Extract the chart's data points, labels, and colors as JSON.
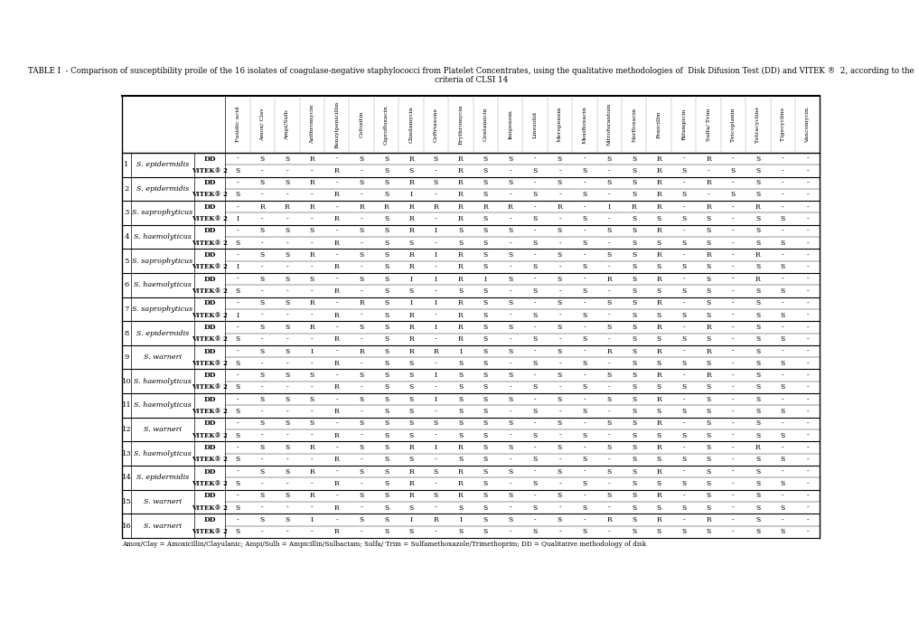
{
  "title": "TABLE I  - Comparison of susceptibility proile of the 16 isolates of coagulase-negative staphylococci from Platelet Concentrates, using the qualitative methodologies of  Disk Difusion Test (DD) and VITEK ®  2, according to the criteria of CLSI 14",
  "footnote": "Amox/Clay = Amoxicillin/Clayulanic; Ampi/Sulb = Ampicillin/Sulbactam; Sulfa/ Trim = Sulfamethoxazole/Trimethoprim; DD = Qualitative methodology of disk",
  "col_headers": [
    "Fusidic acid",
    "Amox/ Clav",
    "Ampi/Sulb",
    "Azithromycin",
    "Benzylpenicillin",
    "Cefoxitin",
    "Ciprofloxacin",
    "Clindamycin",
    "Ceftriaxone",
    "Erythromycin",
    "Gentamicin",
    "Imipenem",
    "Linezolid",
    "Meropenem",
    "Moxifloxacin",
    "Nitrofurantoin",
    "Norfloxacin",
    "Penicillin",
    "Rifampicin",
    "Sulfa/ Trim",
    "Teicoplanin",
    "Tetracycline",
    "Tigecycline",
    "Vancomycin."
  ],
  "rows": [
    {
      "num": "1",
      "organism": "S. epidermidis",
      "DD": [
        "-",
        "S",
        "S",
        "R",
        "-",
        "S",
        "S",
        "R",
        "S",
        "R",
        "S",
        "S",
        "-",
        "S",
        "-",
        "S",
        "S",
        "R",
        "-",
        "R",
        "-",
        "S",
        "-",
        "-"
      ],
      "VITEK2": [
        "S",
        "-",
        "-",
        "-",
        "R",
        "-",
        "S",
        "S",
        "-",
        "R",
        "S",
        "-",
        "S",
        "-",
        "S",
        "-",
        "S",
        "R",
        "S",
        "-",
        "S",
        "S",
        "-",
        "-"
      ]
    },
    {
      "num": "2",
      "organism": "S. epidermidis",
      "DD": [
        "-",
        "S",
        "S",
        "R",
        "-",
        "S",
        "S",
        "R",
        "S",
        "R",
        "S",
        "S",
        "-",
        "S",
        "-",
        "S",
        "S",
        "R",
        "-",
        "R",
        "-",
        "S",
        "-",
        "-"
      ],
      "VITEK2": [
        "S",
        "-",
        "-",
        "-",
        "R",
        "-",
        "S",
        "I",
        "-",
        "R",
        "S",
        "-",
        "S",
        "-",
        "S",
        "-",
        "S",
        "R",
        "S",
        "-",
        "S",
        "S",
        "-",
        "-"
      ]
    },
    {
      "num": "3",
      "organism": "S. saprophyticus",
      "DD": [
        "-",
        "R",
        "R",
        "R",
        "-",
        "R",
        "R",
        "R",
        "R",
        "R",
        "R",
        "R",
        "-",
        "R",
        "-",
        "I",
        "R",
        "R",
        "-",
        "R",
        "-",
        "R",
        "-",
        "-"
      ],
      "VITEK2": [
        "I",
        "-",
        "-",
        "-",
        "R",
        "-",
        "S",
        "R",
        "-",
        "R",
        "S",
        "-",
        "S",
        "-",
        "S",
        "-",
        "S",
        "S",
        "S",
        "S",
        "-",
        "S",
        "S",
        "-"
      ]
    },
    {
      "num": "4",
      "organism": "S. haemolyticus",
      "DD": [
        "-",
        "S",
        "S",
        "S",
        "-",
        "S",
        "S",
        "R",
        "I",
        "S",
        "S",
        "S",
        "-",
        "S",
        "-",
        "S",
        "S",
        "R",
        "-",
        "S",
        "-",
        "S",
        "-",
        "-"
      ],
      "VITEK2": [
        "S",
        "-",
        "-",
        "-",
        "R",
        "-",
        "S",
        "S",
        "-",
        "S",
        "S",
        "-",
        "S",
        "-",
        "S",
        "-",
        "S",
        "S",
        "S",
        "S",
        "-",
        "S",
        "S",
        "-"
      ]
    },
    {
      "num": "5",
      "organism": "S. saprophyticus",
      "DD": [
        "-",
        "S",
        "S",
        "R",
        "-",
        "S",
        "S",
        "R",
        "I",
        "R",
        "S",
        "S",
        "-",
        "S",
        "-",
        "S",
        "S",
        "R",
        "-",
        "R",
        "-",
        "R",
        "-",
        "-"
      ],
      "VITEK2": [
        "I",
        "-",
        "-",
        "-",
        "R",
        "-",
        "S",
        "R",
        "-",
        "R",
        "S",
        "-",
        "S",
        "-",
        "S",
        "-",
        "S",
        "S",
        "S",
        "S",
        "-",
        "S",
        "S",
        "-"
      ]
    },
    {
      "num": "6",
      "organism": "S. haemolyticus",
      "DD": [
        "-",
        "S",
        "S",
        "S",
        "-",
        "S",
        "S",
        "I",
        "I",
        "R",
        "I",
        "S",
        "-",
        "S",
        "-",
        "R",
        "S",
        "R",
        "-",
        "S",
        "-",
        "R",
        "-",
        "-"
      ],
      "VITEK2": [
        "S",
        "-",
        "-",
        "-",
        "R",
        "-",
        "S",
        "S",
        "-",
        "S",
        "S",
        "-",
        "S",
        "-",
        "S",
        "-",
        "S",
        "S",
        "S",
        "S",
        "-",
        "S",
        "S",
        "-"
      ]
    },
    {
      "num": "7",
      "organism": "S. saprophyticus",
      "DD": [
        "-",
        "S",
        "S",
        "R",
        "-",
        "R",
        "S",
        "I",
        "I",
        "R",
        "S",
        "S",
        "-",
        "S",
        "-",
        "S",
        "S",
        "R",
        "-",
        "S",
        "-",
        "S",
        "-",
        "-"
      ],
      "VITEK2": [
        "I",
        "-",
        "-",
        "-",
        "R",
        "-",
        "S",
        "R",
        "-",
        "R",
        "S",
        "-",
        "S",
        "-",
        "S",
        "-",
        "S",
        "S",
        "S",
        "S",
        "-",
        "S",
        "S",
        "-"
      ]
    },
    {
      "num": "8",
      "organism": "S. epidermidis",
      "DD": [
        "-",
        "S",
        "S",
        "R",
        "-",
        "S",
        "S",
        "R",
        "I",
        "R",
        "S",
        "S",
        "-",
        "S",
        "-",
        "S",
        "S",
        "R",
        "-",
        "R",
        "-",
        "S",
        "-",
        "-"
      ],
      "VITEK2": [
        "S",
        "-",
        "-",
        "-",
        "R",
        "-",
        "S",
        "R",
        "-",
        "R",
        "S",
        "-",
        "S",
        "-",
        "S",
        "-",
        "S",
        "S",
        "S",
        "S",
        "-",
        "S",
        "S",
        "-"
      ]
    },
    {
      "num": "9",
      "organism": "S. warneri",
      "DD": [
        "-",
        "S",
        "S",
        "I",
        "-",
        "R",
        "S",
        "R",
        "R",
        "I",
        "S",
        "S",
        "-",
        "S",
        "-",
        "R",
        "S",
        "R",
        "-",
        "R",
        "-",
        "S",
        "-",
        "-"
      ],
      "VITEK2": [
        "S",
        "-",
        "-",
        "-",
        "R",
        "-",
        "S",
        "S",
        "-",
        "S",
        "S",
        "-",
        "S",
        "-",
        "S",
        "-",
        "S",
        "S",
        "S",
        "S",
        "-",
        "S",
        "S",
        "-"
      ]
    },
    {
      "num": "10",
      "organism": "S. haemolyticus",
      "DD": [
        "-",
        "S",
        "S",
        "S",
        "-",
        "S",
        "S",
        "S",
        "I",
        "S",
        "S",
        "S",
        "-",
        "S",
        "-",
        "S",
        "S",
        "R",
        "-",
        "R",
        "-",
        "S",
        "-",
        "-"
      ],
      "VITEK2": [
        "S",
        "-",
        "-",
        "-",
        "R",
        "-",
        "S",
        "S",
        "-",
        "S",
        "S",
        "-",
        "S",
        "-",
        "S",
        "-",
        "S",
        "S",
        "S",
        "S",
        "-",
        "S",
        "S",
        "-"
      ]
    },
    {
      "num": "11",
      "organism": "S. haemolyticus",
      "DD": [
        "-",
        "S",
        "S",
        "S",
        "-",
        "S",
        "S",
        "S",
        "I",
        "S",
        "S",
        "S",
        "-",
        "S",
        "-",
        "S",
        "S",
        "R",
        "-",
        "S",
        "-",
        "S",
        "-",
        "-"
      ],
      "VITEK2": [
        "S",
        "-",
        "-",
        "-",
        "R",
        "-",
        "S",
        "S",
        "-",
        "S",
        "S",
        "-",
        "S",
        "-",
        "S",
        "-",
        "S",
        "S",
        "S",
        "S",
        "-",
        "S",
        "S",
        "-"
      ]
    },
    {
      "num": "12",
      "organism": "S. warneri",
      "DD": [
        "-",
        "S",
        "S",
        "S",
        "-",
        "S",
        "S",
        "S",
        "S",
        "S",
        "S",
        "S",
        "-",
        "S",
        "-",
        "S",
        "S",
        "R",
        "-",
        "S",
        "-",
        "S",
        "-",
        "-"
      ],
      "VITEK2": [
        "S",
        "-",
        "-",
        "-",
        "R",
        "-",
        "S",
        "S",
        "-",
        "S",
        "S",
        "-",
        "S",
        "-",
        "S",
        "-",
        "S",
        "S",
        "S",
        "S",
        "-",
        "S",
        "S",
        "-"
      ]
    },
    {
      "num": "13",
      "organism": "S. haemolyticus",
      "DD": [
        "-",
        "S",
        "S",
        "R",
        "-",
        "S",
        "S",
        "R",
        "I",
        "R",
        "S",
        "S",
        "-",
        "S",
        "-",
        "S",
        "S",
        "R",
        "-",
        "S",
        "-",
        "R",
        "-",
        "-"
      ],
      "VITEK2": [
        "S",
        "-",
        "-",
        "-",
        "R",
        "-",
        "S",
        "S",
        "-",
        "S",
        "S",
        "-",
        "S",
        "-",
        "S",
        "-",
        "S",
        "S",
        "S",
        "S",
        "-",
        "S",
        "S",
        "-"
      ]
    },
    {
      "num": "14",
      "organism": "S. epidermidis",
      "DD": [
        "-",
        "S",
        "S",
        "R",
        "-",
        "S",
        "S",
        "R",
        "S",
        "R",
        "S",
        "S",
        "-",
        "S",
        "-",
        "S",
        "S",
        "R",
        "-",
        "S",
        "-",
        "S",
        "-",
        "-"
      ],
      "VITEK2": [
        "S",
        "-",
        "-",
        "-",
        "R",
        "-",
        "S",
        "R",
        "-",
        "R",
        "S",
        "-",
        "S",
        "-",
        "S",
        "-",
        "S",
        "S",
        "S",
        "S",
        "-",
        "S",
        "S",
        "-"
      ]
    },
    {
      "num": "15",
      "organism": "S. warneri",
      "DD": [
        "-",
        "S",
        "S",
        "R",
        "-",
        "S",
        "S",
        "R",
        "S",
        "R",
        "S",
        "S",
        "-",
        "S",
        "-",
        "S",
        "S",
        "R",
        "-",
        "S",
        "-",
        "S",
        "-",
        "-"
      ],
      "VITEK2": [
        "S",
        "-",
        "-",
        "-",
        "R",
        "-",
        "S",
        "S",
        "-",
        "S",
        "S",
        "-",
        "S",
        "-",
        "S",
        "-",
        "S",
        "S",
        "S",
        "S",
        "-",
        "S",
        "S",
        "-"
      ]
    },
    {
      "num": "16",
      "organism": "S. warneri",
      "DD": [
        "-",
        "S",
        "S",
        "I",
        "-",
        "S",
        "S",
        "I",
        "R",
        "I",
        "S",
        "S",
        "-",
        "S",
        "-",
        "R",
        "S",
        "R",
        "-",
        "R",
        "-",
        "S",
        "-",
        "-"
      ],
      "VITEK2": [
        "S",
        "-",
        "-",
        "-",
        "R",
        "-",
        "S",
        "S",
        "-",
        "S",
        "S",
        "-",
        "S",
        "-",
        "S",
        "-",
        "S",
        "S",
        "S",
        "S",
        "-",
        "S",
        "S",
        "-"
      ]
    }
  ]
}
